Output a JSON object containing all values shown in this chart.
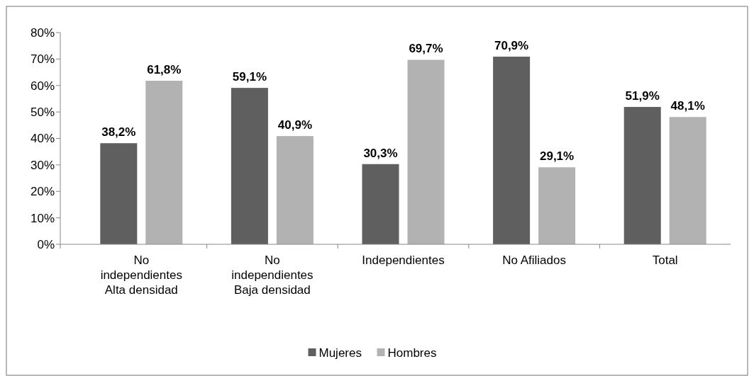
{
  "chart_data": {
    "type": "bar",
    "categories": [
      "No independientes Alta densidad",
      "No independientes Baja densidad",
      "Independientes",
      "No Afiliados",
      "Total"
    ],
    "series": [
      {
        "name": "Mujeres",
        "color": "#5f5f5f",
        "values": [
          38.2,
          59.1,
          30.3,
          70.9,
          51.9
        ],
        "value_labels": [
          "38,2%",
          "59,1%",
          "30,3%",
          "70,9%",
          "51,9%"
        ]
      },
      {
        "name": "Hombres",
        "color": "#b2b2b2",
        "values": [
          61.8,
          40.9,
          69.7,
          29.1,
          48.1
        ],
        "value_labels": [
          "61,8%",
          "40,9%",
          "69,7%",
          "29,1%",
          "48,1%"
        ]
      }
    ],
    "ylim": [
      0,
      80
    ],
    "yticks": [
      {
        "value": 0,
        "label": "0%"
      },
      {
        "value": 10,
        "label": "10%"
      },
      {
        "value": 20,
        "label": "20%"
      },
      {
        "value": 30,
        "label": "30%"
      },
      {
        "value": 40,
        "label": "40%"
      },
      {
        "value": 50,
        "label": "50%"
      },
      {
        "value": 60,
        "label": "60%"
      },
      {
        "value": 70,
        "label": "70%"
      },
      {
        "value": 80,
        "label": "80%"
      }
    ],
    "grid": false,
    "legend": "bottom"
  }
}
